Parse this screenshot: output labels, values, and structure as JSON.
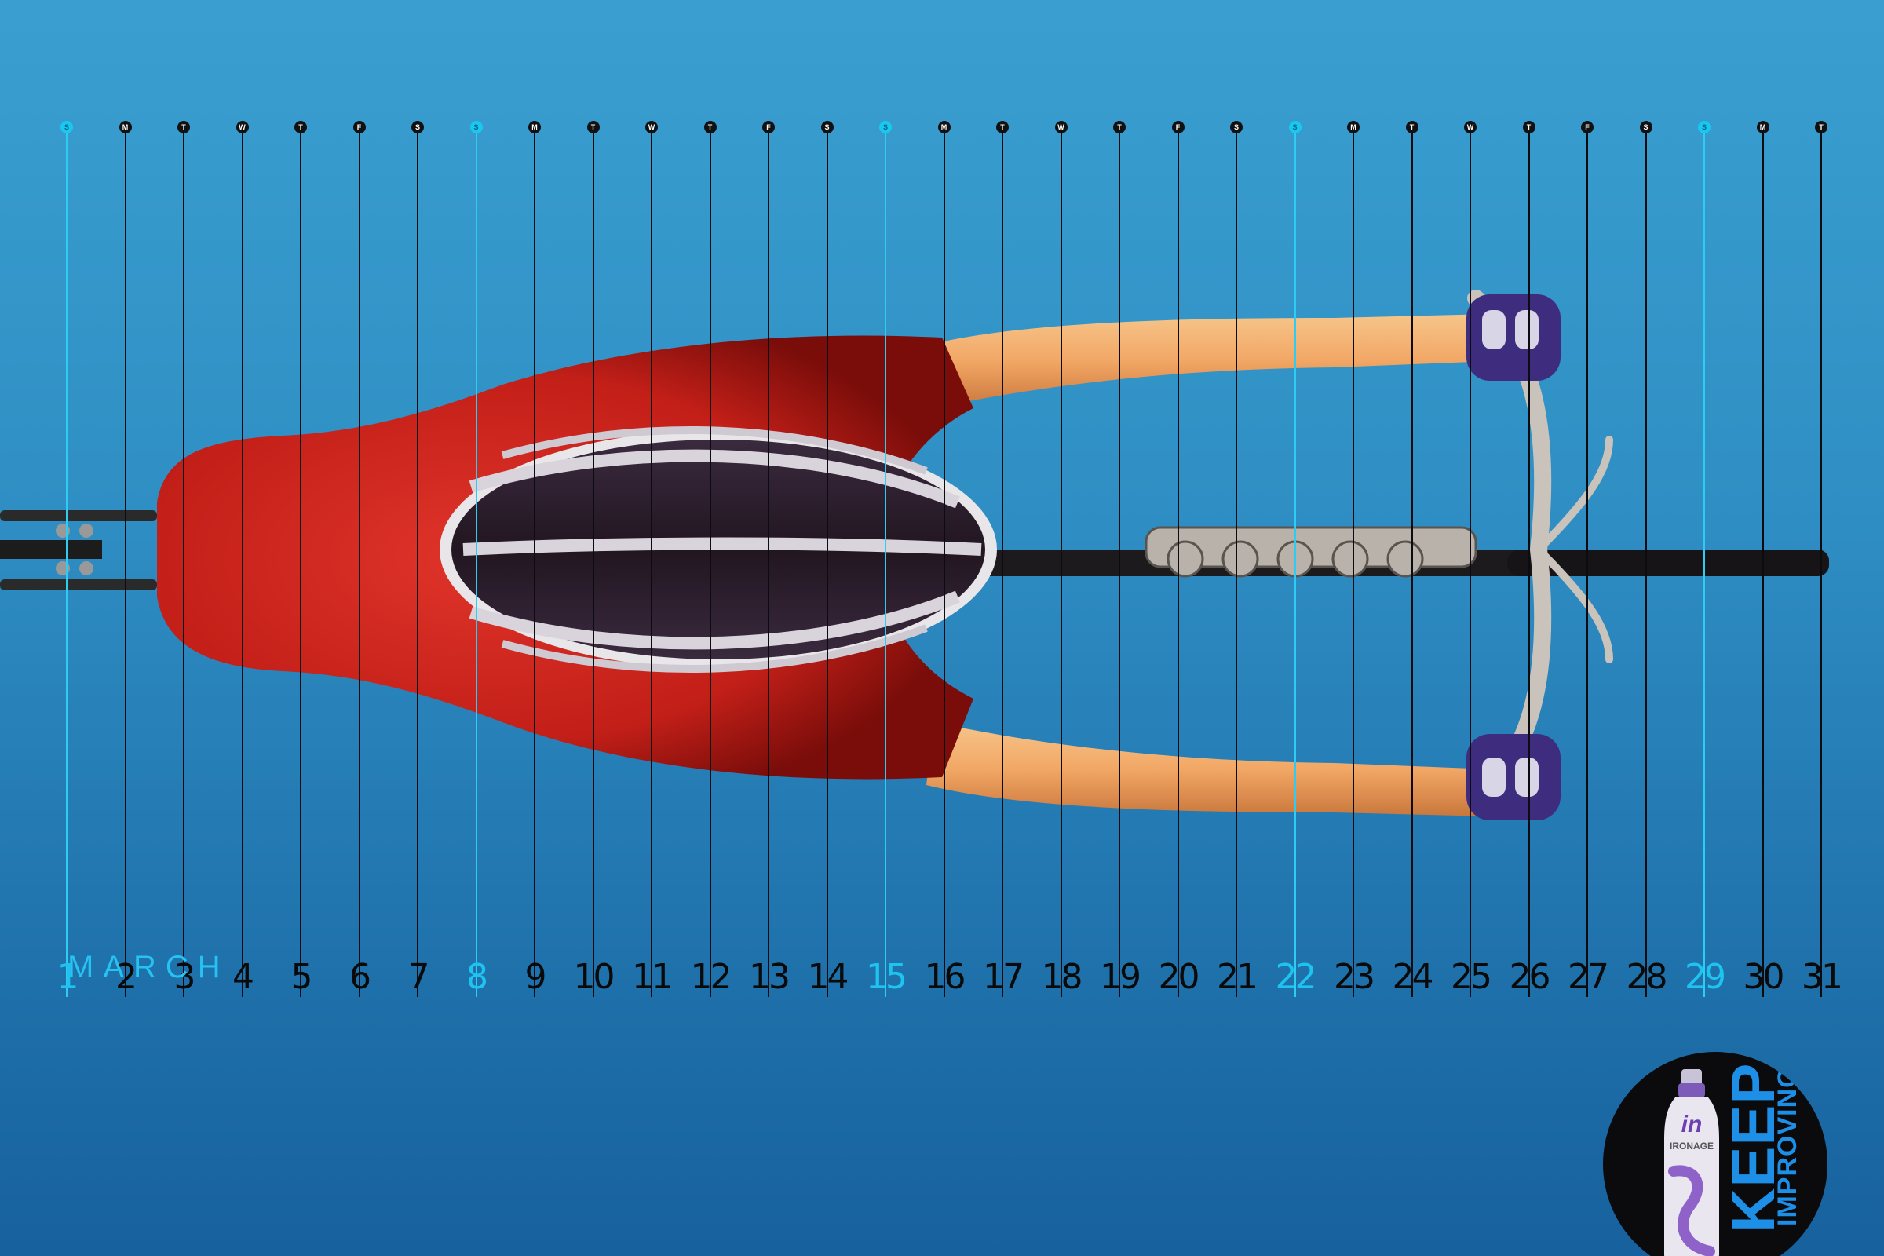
{
  "calendar": {
    "month": "MARCH",
    "days": [
      {
        "num": "1",
        "dow": "S",
        "sunday": true
      },
      {
        "num": "2",
        "dow": "M",
        "sunday": false
      },
      {
        "num": "3",
        "dow": "T",
        "sunday": false
      },
      {
        "num": "4",
        "dow": "W",
        "sunday": false
      },
      {
        "num": "5",
        "dow": "T",
        "sunday": false
      },
      {
        "num": "6",
        "dow": "F",
        "sunday": false
      },
      {
        "num": "7",
        "dow": "S",
        "sunday": false
      },
      {
        "num": "8",
        "dow": "S",
        "sunday": true
      },
      {
        "num": "9",
        "dow": "M",
        "sunday": false
      },
      {
        "num": "10",
        "dow": "T",
        "sunday": false
      },
      {
        "num": "11",
        "dow": "W",
        "sunday": false
      },
      {
        "num": "12",
        "dow": "T",
        "sunday": false
      },
      {
        "num": "13",
        "dow": "F",
        "sunday": false
      },
      {
        "num": "14",
        "dow": "S",
        "sunday": false
      },
      {
        "num": "15",
        "dow": "S",
        "sunday": true
      },
      {
        "num": "16",
        "dow": "M",
        "sunday": false
      },
      {
        "num": "17",
        "dow": "T",
        "sunday": false
      },
      {
        "num": "18",
        "dow": "W",
        "sunday": false
      },
      {
        "num": "19",
        "dow": "T",
        "sunday": false
      },
      {
        "num": "20",
        "dow": "F",
        "sunday": false
      },
      {
        "num": "21",
        "dow": "S",
        "sunday": false
      },
      {
        "num": "22",
        "dow": "S",
        "sunday": true
      },
      {
        "num": "23",
        "dow": "M",
        "sunday": false
      },
      {
        "num": "24",
        "dow": "T",
        "sunday": false
      },
      {
        "num": "25",
        "dow": "W",
        "sunday": false
      },
      {
        "num": "26",
        "dow": "T",
        "sunday": false
      },
      {
        "num": "27",
        "dow": "F",
        "sunday": false
      },
      {
        "num": "28",
        "dow": "S",
        "sunday": false
      },
      {
        "num": "29",
        "dow": "S",
        "sunday": true
      },
      {
        "num": "30",
        "dow": "M",
        "sunday": false
      },
      {
        "num": "31",
        "dow": "T",
        "sunday": false
      }
    ]
  },
  "badge": {
    "line1": "KEEP",
    "line2": "IMPROVING",
    "brand_logo": "in",
    "brand_name": "IRONAGE"
  },
  "colors": {
    "background_top": "#3a9fd0",
    "background_bottom": "#17619e",
    "sunday_accent": "#1ec4ef",
    "jersey": "#c8241c",
    "badge_text": "#1d8fe6"
  }
}
